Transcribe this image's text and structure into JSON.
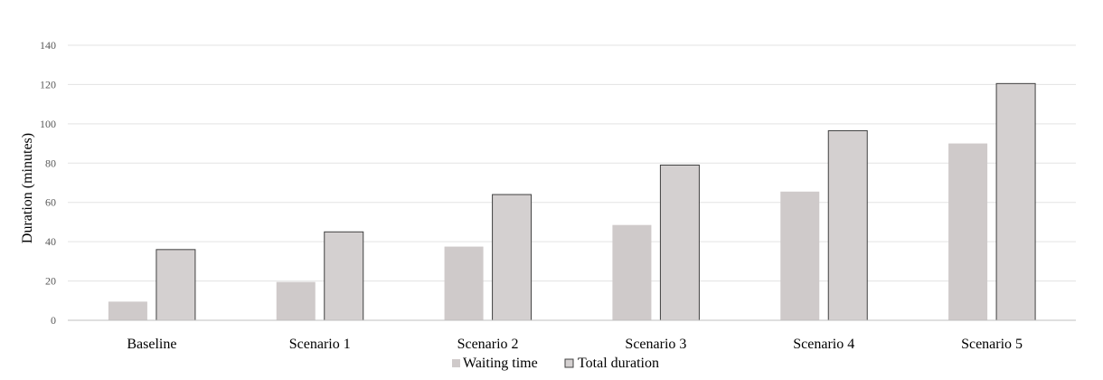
{
  "chart_data": {
    "type": "bar",
    "title": "",
    "xlabel": "",
    "ylabel": "Duration (minutes)",
    "ylim": [
      0,
      140
    ],
    "yticks": [
      0,
      20,
      40,
      60,
      80,
      100,
      120,
      140
    ],
    "categories": [
      "Baseline",
      "Scenario 1",
      "Scenario 2",
      "Scenario 3",
      "Scenario 4",
      "Scenario 5"
    ],
    "series": [
      {
        "name": "Waiting time",
        "values": [
          9.5,
          19.5,
          37.5,
          48.5,
          65.5,
          90
        ],
        "color": "#cfcaca",
        "outlined": false
      },
      {
        "name": "Total duration",
        "values": [
          36,
          45,
          64,
          79,
          96.5,
          120.5
        ],
        "color": "#d4d0d0",
        "outlined": true
      }
    ],
    "grid": true,
    "legend_position": "bottom"
  }
}
